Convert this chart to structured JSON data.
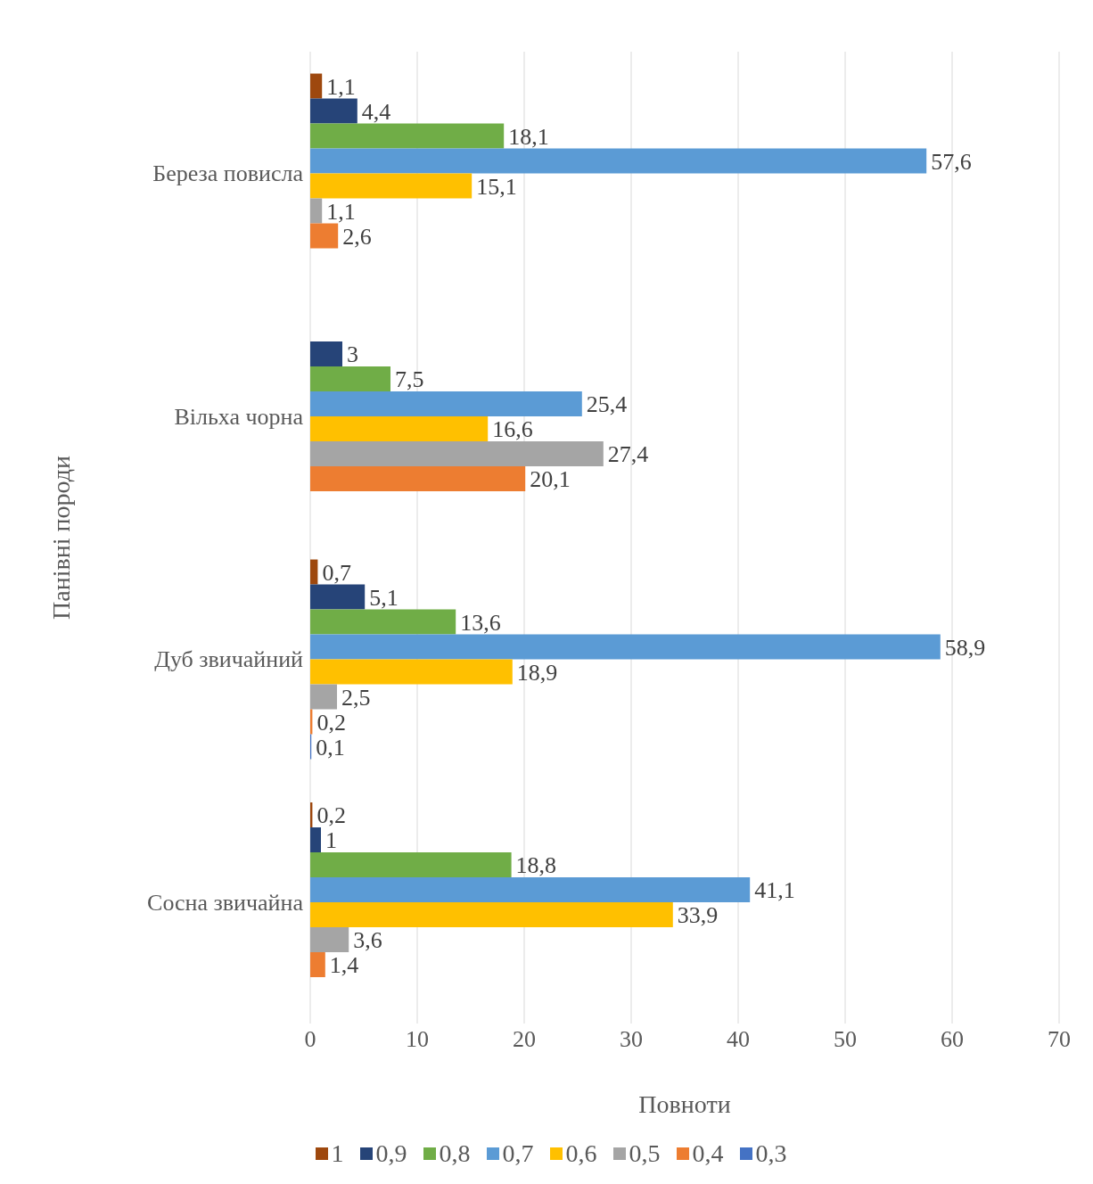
{
  "chart_data": {
    "type": "bar",
    "orientation": "horizontal",
    "xlabel": "Повноти",
    "ylabel": "Панівні породи",
    "categories": [
      "Береза повисла",
      "Вільха чорна",
      "Дуб звичайний",
      "Сосна звичайна"
    ],
    "series": [
      {
        "name": "1",
        "color": "#9e480e",
        "values": [
          1.1,
          null,
          0.7,
          0.2
        ],
        "value_labels": [
          "1,1",
          null,
          "0,7",
          "0,2"
        ]
      },
      {
        "name": "0,9",
        "color": "#264478",
        "values": [
          4.4,
          3,
          5.1,
          1
        ],
        "value_labels": [
          "4,4",
          "3",
          "5,1",
          "1"
        ]
      },
      {
        "name": "0,8",
        "color": "#70ad47",
        "values": [
          18.1,
          7.5,
          13.6,
          18.8
        ],
        "value_labels": [
          "18,1",
          "7,5",
          "13,6",
          "18,8"
        ]
      },
      {
        "name": "0,7",
        "color": "#5b9bd5",
        "values": [
          57.6,
          25.4,
          58.9,
          41.1
        ],
        "value_labels": [
          "57,6",
          "25,4",
          "58,9",
          "41,1"
        ]
      },
      {
        "name": "0,6",
        "color": "#ffc000",
        "values": [
          15.1,
          16.6,
          18.9,
          33.9
        ],
        "value_labels": [
          "15,1",
          "16,6",
          "18,9",
          "33,9"
        ]
      },
      {
        "name": "0,5",
        "color": "#a5a5a5",
        "values": [
          1.1,
          27.4,
          2.5,
          3.6
        ],
        "value_labels": [
          "1,1",
          "27,4",
          "2,5",
          "3,6"
        ]
      },
      {
        "name": "0,4",
        "color": "#ed7d31",
        "values": [
          2.6,
          20.1,
          0.2,
          1.4
        ],
        "value_labels": [
          "2,6",
          "20,1",
          "0,2",
          "1,4"
        ]
      },
      {
        "name": "0,3",
        "color": "#4472c4",
        "values": [
          null,
          null,
          0.1,
          null
        ],
        "value_labels": [
          null,
          null,
          "0,1",
          null
        ]
      }
    ],
    "xlim": [
      0,
      70
    ],
    "xticks": [
      0,
      10,
      20,
      30,
      40,
      50,
      60,
      70
    ],
    "grid": "x",
    "legend": "bottom"
  }
}
